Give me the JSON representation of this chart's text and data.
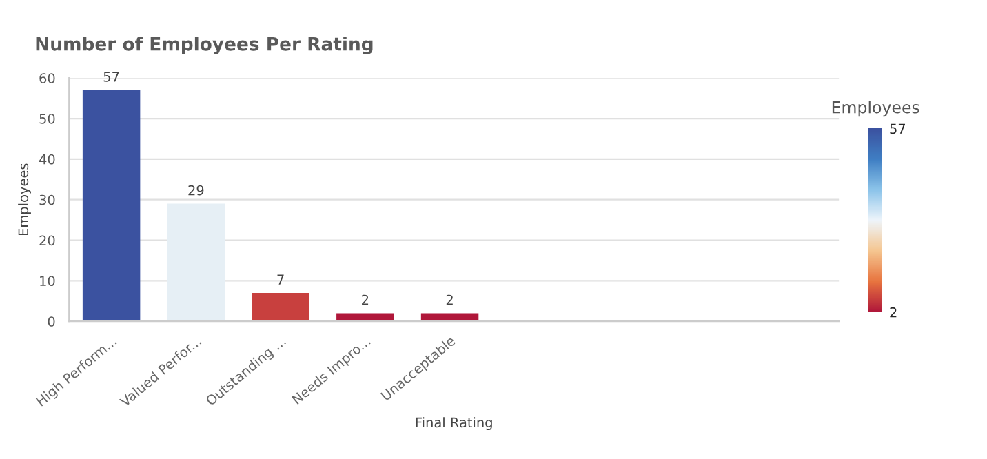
{
  "chart_data": {
    "type": "bar",
    "title": "Number of Employees Per Rating",
    "xlabel": "Final Rating",
    "ylabel": "Employees",
    "clabel": "Employees",
    "categories": [
      "High Perform...",
      "Valued Perfor...",
      "Outstanding ...",
      "Needs Impro...",
      "Unacceptable"
    ],
    "values": [
      57,
      29,
      7,
      2,
      2
    ],
    "colors": [
      "#3b52a0",
      "#e6eff5",
      "#c8403e",
      "#b0173a",
      "#b0173a"
    ],
    "ylim": [
      0,
      60
    ],
    "yticks": [
      0,
      10,
      20,
      30,
      40,
      50,
      60
    ],
    "grid": "y",
    "data_labels": true,
    "clim": [
      2,
      57
    ],
    "cticks": [
      2,
      57
    ]
  }
}
